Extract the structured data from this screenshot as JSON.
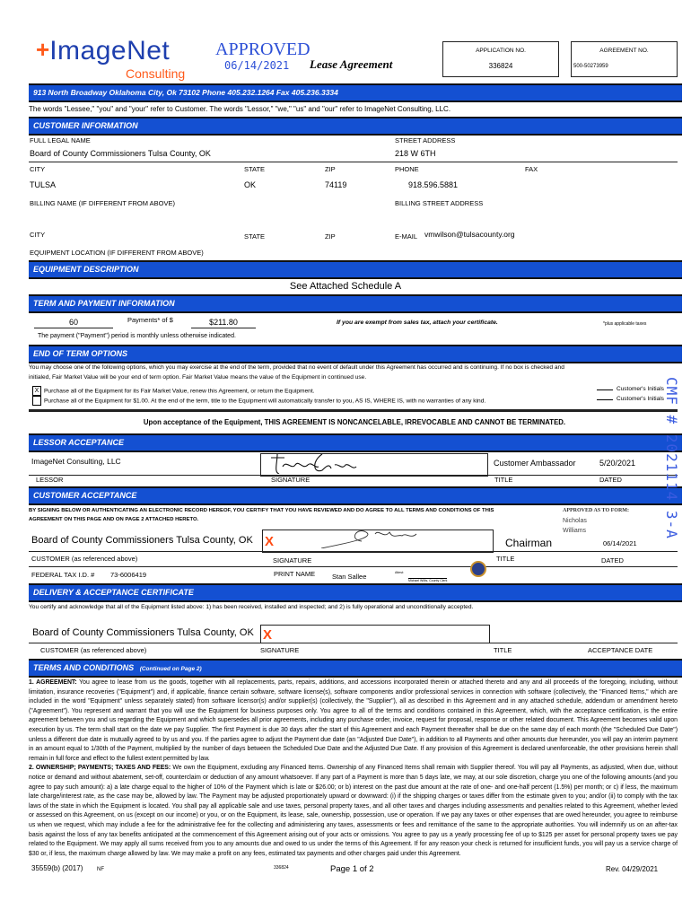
{
  "header": {
    "logo_main": "ImageNet",
    "logo_sub": "Consulting",
    "stamp": "APPROVED",
    "stamp_date": "06/14/2021",
    "title": "Lease Agreement",
    "app_no_label": "APPLICATION NO.",
    "app_no": "336824",
    "agreement_no_label": "AGREEMENT NO.",
    "agreement_no": "500-50273959",
    "address": "913 North Broadway Oklahoma City, Ok 73102 Phone 405.232.1264 Fax 405.236.3334",
    "colors": {
      "brand_blue": "#1450d2",
      "brand_orange": "#ff5a1a"
    }
  },
  "definitions": "The words \"Lessee,\" \"you\" and \"your\" refer to Customer.  The words \"Lessor,\" \"we,\" \"us\" and \"our\" refer to ImageNet Consulting, LLC.",
  "customer": {
    "section": "CUSTOMER INFORMATION",
    "full_name_label": "FULL LEGAL NAME",
    "full_name": "Board of County Commissioners Tulsa County, OK",
    "street_label": "STREET ADDRESS",
    "street": "218 W 6TH",
    "city_label": "CITY",
    "state_label": "STATE",
    "zip_label": "ZIP",
    "phone_label": "PHONE",
    "fax_label": "FAX",
    "city": "TULSA",
    "state": "OK",
    "zip": "74119",
    "phone": "918.596.5881",
    "billing_name_label": "BILLING NAME (IF DIFFERENT FROM ABOVE)",
    "billing_street_label": "BILLING STREET ADDRESS",
    "email_label": "E-MAIL",
    "email": "vmwilson@tulsacounty.org",
    "equip_location_label": "EQUIPMENT LOCATION (IF DIFFERENT FROM ABOVE)"
  },
  "equipment": {
    "section": "EQUIPMENT DESCRIPTION",
    "text": "See Attached Schedule A"
  },
  "term": {
    "section": "TERM AND PAYMENT INFORMATION",
    "count": "60",
    "payments_label": "Payments* of $",
    "amount": "$211.80",
    "exempt": "If you are exempt from sales tax, attach your certificate.",
    "plus_taxes": "*plus applicable taxes",
    "period": "The payment (\"Payment\") period is monthly unless otherwise indicated."
  },
  "end_of_term": {
    "section": "END OF TERM OPTIONS",
    "text1": "You may choose one of the following options, which you may exercise at the end of the term, provided that no event of default under this Agreement has occurred and is continuing.  If no box is checked and",
    "text2": "initialed, Fair Market Value will be your end of term option.  Fair Market Value means the value of the Equipment in continued use.",
    "options": [
      {
        "checked": "X",
        "text": "Purchase all of the Equipment for its Fair Market Value, renew this Agreement, or return the Equipment.",
        "initials": "Customer's Initials"
      },
      {
        "checked": "",
        "text": "Purchase all of the Equipment for $1.00.  At the end of the term, title to the Equipment will automatically transfer to you, AS IS, WHERE IS, with no warranties of any kind.",
        "initials": "Customer's Initials"
      }
    ],
    "notice": "Upon acceptance of the Equipment, THIS AGREEMENT IS NONCANCELABLE, IRREVOCABLE AND CANNOT BE TERMINATED."
  },
  "lessor": {
    "section": "LESSOR ACCEPTANCE",
    "name": "ImageNet Consulting, LLC",
    "title": "Customer Ambassador",
    "date": "5/20/2021",
    "lessor_label": "LESSOR",
    "signature_label": "SIGNATURE",
    "title_label": "TITLE",
    "dated_label": "DATED"
  },
  "customer_acceptance": {
    "section": "CUSTOMER ACCEPTANCE",
    "text1": "BY SIGNING BELOW OR AUTHENTICATING AN ELECTRONIC RECORD HEREOF, YOU CERTIFY THAT YOU HAVE REVIEWED AND DO AGREE TO ALL TERMS AND CONDITIONS OF THIS",
    "text2": "AGREEMENT ON THIS PAGE AND ON PAGE 2 ATTACHED HERETO.",
    "approved_form": "APPROVED AS TO FORM:",
    "approver": "Nicholas Williams",
    "name": "Board of County Commissioners Tulsa County, OK",
    "x_mark": "X",
    "title": "Chairman",
    "date": "06/14/2021",
    "customer_label": "CUSTOMER (as referenced above)",
    "signature_label": "SIGNATURE",
    "title_label": "TITLE",
    "dated_label": "DATED",
    "tax_id_label": "FEDERAL TAX I.D. #",
    "tax_id": "73-6006419",
    "print_name_label": "PRINT NAME",
    "print_name": "Stan Sallee",
    "attest": "Attest:",
    "clerk": "Michael Willis, County Clerk"
  },
  "delivery": {
    "section": "DELIVERY & ACCEPTANCE CERTIFICATE",
    "text": "You certify and acknowledge that all of the Equipment listed above: 1) has been received, installed and inspected; and 2) is fully operational and unconditionally accepted.",
    "name": "Board of County Commissioners Tulsa County, OK",
    "x_mark": "X",
    "customer_label": "CUSTOMER (as referenced above)",
    "signature_label": "SIGNATURE",
    "title_label": "TITLE",
    "date_label": "ACCEPTANCE DATE"
  },
  "terms": {
    "section": "TERMS AND CONDITIONS",
    "continued": "(Continued on Page 2)",
    "p1_head": "1.    AGREEMENT:",
    "p1": " You agree to lease from us the goods, together with all replacements, parts, repairs, additions, and accessions incorporated therein or attached thereto and any and all proceeds of the foregoing, including, without limitation, insurance recoveries (\"Equipment\") and, if applicable, finance certain software, software license(s), software components and/or professional services in connection with software (collectively, the \"Financed Items,\" which are included in the word \"Equipment\" unless separately stated) from software licensor(s) and/or supplier(s) (collectively, the \"Supplier\"), all as described in this Agreement and in any attached schedule, addendum or amendment hereto (\"Agreement\").  You represent and warrant that you will use the Equipment for business purposes only.  You agree to all of the terms and conditions contained in this Agreement, which, with the acceptance certification, is the entire agreement between you and us regarding the Equipment and which supersedes all prior agreements, including any purchase order, invoice, request for proposal, response or other related document.  This Agreement becomes valid upon execution by us.  The term shall start on the date we pay Supplier.  The first Payment is due 30 days after the start of this Agreement and each Payment thereafter shall be due on the same day of each month (the \"Scheduled Due Date\") unless a different due date is mutually agreed to by us and you.  If the parties agree to adjust the Payment due date (an \"Adjusted Due Date\"), in addition to all Payments and other amounts due hereunder, you will pay an interim payment in an amount equal to 1/30th of the Payment, multiplied by the number of days between the Scheduled Due Date and the Adjusted Due Date.  If any provision of this Agreement is declared unenforceable, the other provisions herein shall remain in full force and effect to the fullest extent permitted by law.",
    "p2_head": "2.    OWNERSHIP; PAYMENTS; TAXES AND FEES:",
    "p2": " We own the Equipment, excluding any Financed Items.  Ownership of any Financed Items shall remain with Supplier thereof.  You will pay all Payments, as adjusted, when due, without notice or demand and without abatement, set-off, counterclaim or deduction of any amount whatsoever.  If any part of a Payment is more than 5 days late, we may, at our sole discretion, charge you one of the following amounts (and you agree to pay such amount): a) a late charge equal to the higher of 10% of the Payment which is late or $26.00; or b) interest on the past due amount at the rate of one- and one-half percent (1.5%) per month; or c) if less, the maximum late charge/interest rate, as the case may be, allowed by law.  The Payment may be adjusted proportionately upward or downward: (i) if the shipping charges or taxes differ from the estimate given to you; and/or (ii) to comply with the tax laws of the state in which the Equipment is located.  You shall pay all applicable sale and use taxes, personal property taxes, and all other taxes and charges including assessments and penalties related to this Agreement, whether levied or assessed on this Agreement, on us (except on our income) or you, or on the Equipment, its lease, sale, ownership, possession, use or operation.  If we pay any taxes or other expenses that are owed hereunder, you agree to reimburse us when we request, which may include a fee for the administrative fee for the collecting and administering any taxes, assessments or fees and remittance of the same to the appropriate authorities.  You will indemnify us on an after-tax basis against the loss of any tax benefits anticipated at the commencement of this Agreement arising out of your acts or omissions.  You agree to pay us a yearly processing fee of up to $125 per asset for personal property taxes we pay related to the Equipment.  We may apply all sums received from you to any amounts due and owed to us under the terms of this Agreement.  If for any reason your check is returned for insufficient funds, you will pay us a service charge of $30 or, if less, the maximum charge allowed by law.  We may make a profit on any fees, estimated tax payments and other charges paid under this Agreement."
  },
  "footer": {
    "form": "35559(b) (2017)",
    "code": "NF",
    "app": "336824",
    "page": "Page 1 of 2",
    "rev": "Rev. 04/29/2021"
  },
  "side_stamp": "CMF # 2021114 3-A"
}
